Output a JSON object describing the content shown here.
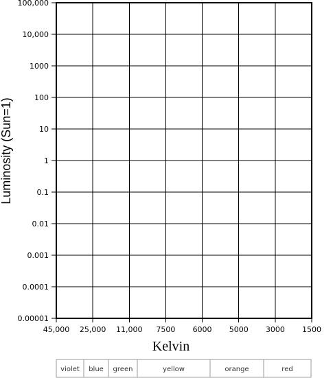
{
  "chart_data": {
    "type": "scatter",
    "title": "",
    "xlabel": "Kelvin",
    "ylabel": "Luminosity (Sun=1)",
    "x_ticks": [
      "45,000",
      "25,000",
      "11,000",
      "7500",
      "6000",
      "5000",
      "3000",
      "1500"
    ],
    "y_ticks": [
      "100,000",
      "10,000",
      "1000",
      "100",
      "10",
      "1",
      "0.1",
      "0.01",
      "0.001",
      "0.0001",
      "0.00001"
    ],
    "y_scale": "log",
    "ylim": [
      1e-05,
      100000
    ],
    "x_direction": "decreasing",
    "grid": true,
    "series": [],
    "color_bands": [
      "violet",
      "blue",
      "green",
      "yellow",
      "orange",
      "red"
    ]
  }
}
